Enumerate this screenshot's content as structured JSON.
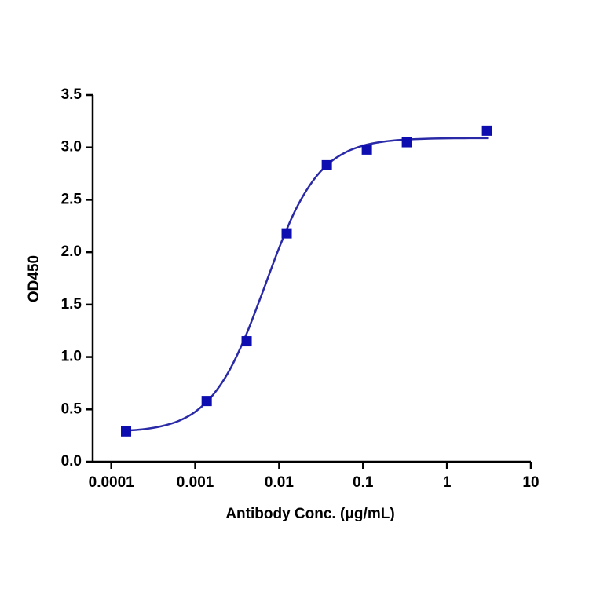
{
  "chart_data": {
    "type": "scatter",
    "x_label": "Antibody Conc. (μg/mL)",
    "y_label": "OD450",
    "xscale": "log",
    "xlim": [
      6e-05,
      10
    ],
    "xticks": [
      0.0001,
      0.001,
      0.01,
      0.1,
      1,
      10
    ],
    "ylim": [
      0,
      3.5
    ],
    "yticks": [
      {
        "value": 0,
        "label": "0.0"
      },
      {
        "value": 0.5,
        "label": "0.5"
      },
      {
        "value": 1,
        "label": "1.0"
      },
      {
        "value": 1.5,
        "label": "1.5"
      },
      {
        "value": 2,
        "label": "2.0"
      },
      {
        "value": 2.5,
        "label": "2.5"
      },
      {
        "value": 3,
        "label": "3.0"
      },
      {
        "value": 3.5,
        "label": "3.5"
      }
    ],
    "grid": false,
    "points": {
      "color": "#0d0db0",
      "x": [
        0.00015,
        0.00137,
        0.0041,
        0.0123,
        0.037,
        0.111,
        0.333,
        3
      ],
      "y": [
        0.29,
        0.58,
        1.15,
        2.18,
        2.83,
        2.98,
        3.05,
        3.16
      ]
    },
    "curve": {
      "color": "#2a2aa8",
      "x": [
        0.00015,
        0.000251,
        0.000398,
        0.000631,
        0.001,
        0.00158,
        0.00251,
        0.00398,
        0.00631,
        0.01,
        0.0158,
        0.0251,
        0.0398,
        0.0631,
        0.1,
        0.158,
        0.251,
        0.398,
        0.631,
        1,
        1.58,
        2.51,
        3.16
      ],
      "y": [
        0.297,
        0.312,
        0.34,
        0.389,
        0.477,
        0.625,
        0.861,
        1.198,
        1.613,
        2.042,
        2.409,
        2.678,
        2.853,
        2.957,
        3.017,
        3.05,
        3.069,
        3.078,
        3.084,
        3.087,
        3.088,
        3.089,
        3.089
      ]
    }
  }
}
